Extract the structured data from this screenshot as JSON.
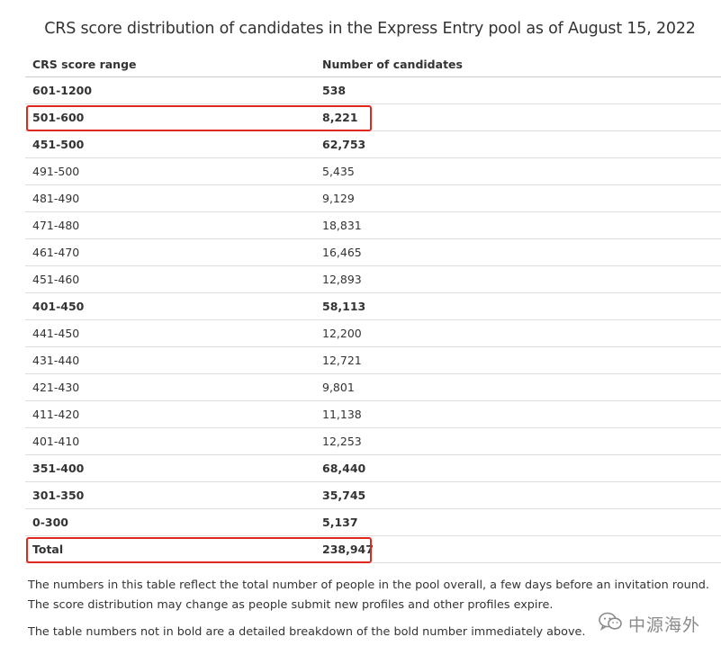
{
  "title": "CRS score distribution of candidates in the Express Entry pool as of August 15, 2022",
  "table": {
    "headers": [
      "CRS score range",
      "Number of candidates"
    ],
    "rows": [
      {
        "range": "601-1200",
        "count": "538",
        "bold": true
      },
      {
        "range": "501-600",
        "count": "8,221",
        "bold": true,
        "highlighted": true
      },
      {
        "range": "451-500",
        "count": "62,753",
        "bold": true
      },
      {
        "range": "491-500",
        "count": "5,435",
        "bold": false
      },
      {
        "range": "481-490",
        "count": "9,129",
        "bold": false
      },
      {
        "range": "471-480",
        "count": "18,831",
        "bold": false
      },
      {
        "range": "461-470",
        "count": "16,465",
        "bold": false
      },
      {
        "range": "451-460",
        "count": "12,893",
        "bold": false
      },
      {
        "range": "401-450",
        "count": "58,113",
        "bold": true
      },
      {
        "range": "441-450",
        "count": "12,200",
        "bold": false
      },
      {
        "range": "431-440",
        "count": "12,721",
        "bold": false
      },
      {
        "range": "421-430",
        "count": "9,801",
        "bold": false
      },
      {
        "range": "411-420",
        "count": "11,138",
        "bold": false
      },
      {
        "range": "401-410",
        "count": "12,253",
        "bold": false
      },
      {
        "range": "351-400",
        "count": "68,440",
        "bold": true
      },
      {
        "range": "301-350",
        "count": "35,745",
        "bold": true
      },
      {
        "range": "0-300",
        "count": "5,137",
        "bold": true
      },
      {
        "range": "Total",
        "count": "238,947",
        "bold": true,
        "highlighted": true
      }
    ]
  },
  "notes": [
    "The numbers in this table reflect the total number of people in the pool overall, a few days before an invitation round.",
    "The score distribution may change as people submit new profiles and other profiles expire.",
    "The table numbers not in bold are a detailed breakdown of the bold number immediately above."
  ],
  "watermark": {
    "icon": "wechat-icon",
    "text": "中源海外"
  },
  "colors": {
    "highlight": "#e0271d",
    "text": "#333333",
    "rule": "#dddddd"
  }
}
